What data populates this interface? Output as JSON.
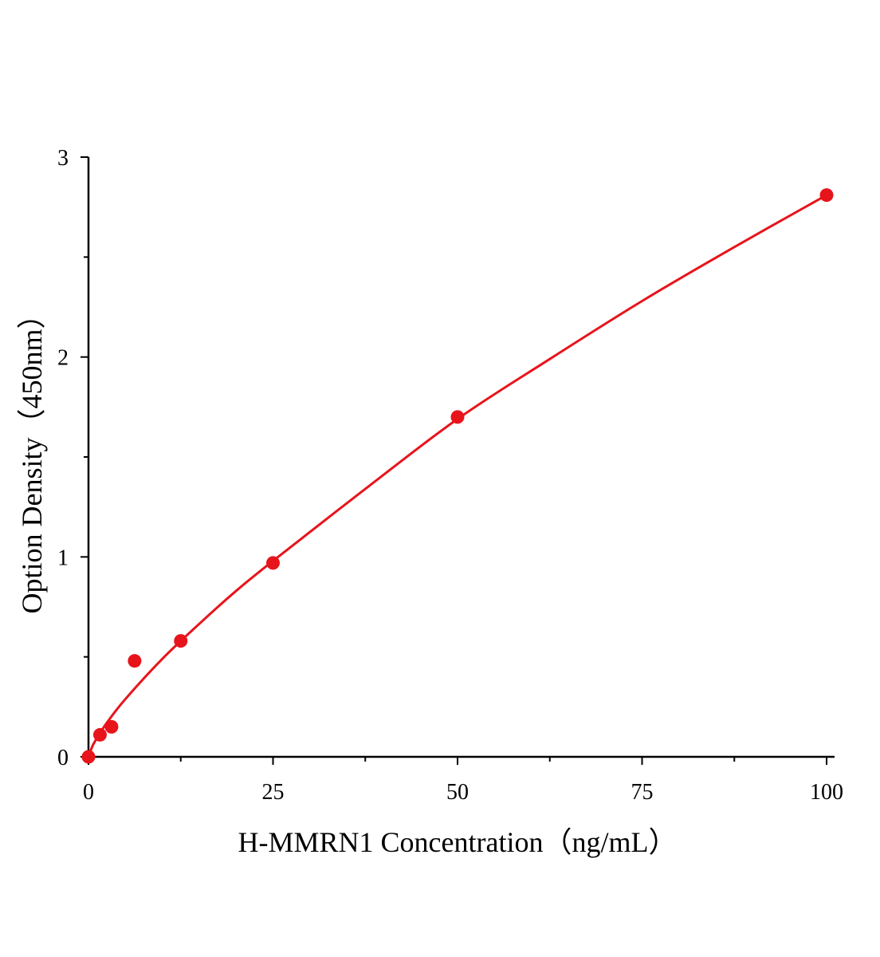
{
  "chart_data": {
    "type": "scatter",
    "title": "",
    "xlabel": "H-MMRN1 Concentration（ng/mL）",
    "ylabel": "Option Density（450nm）",
    "xlim": [
      0,
      100
    ],
    "ylim": [
      0,
      3
    ],
    "x_ticks": [
      0,
      25,
      50,
      75,
      100
    ],
    "x_tick_labels": [
      "0",
      "25",
      "50",
      "75",
      "100"
    ],
    "y_ticks": [
      0,
      1,
      2,
      3
    ],
    "y_tick_labels": [
      "0",
      "1",
      "2",
      "3"
    ],
    "grid": false,
    "color": "#e8141b",
    "points": {
      "x": [
        0,
        1.56,
        3.125,
        6.25,
        12.5,
        25,
        50,
        100
      ],
      "y": [
        0,
        0.11,
        0.15,
        0.48,
        0.58,
        0.97,
        1.7,
        2.81
      ]
    },
    "fit_curve": {
      "x": [
        0,
        0.5,
        1,
        2.5,
        5,
        10,
        15,
        20,
        25,
        37.5,
        50,
        62.5,
        75,
        87.5,
        100
      ],
      "y": [
        0,
        0.05,
        0.085,
        0.171,
        0.289,
        0.49,
        0.665,
        0.83,
        0.98,
        1.34,
        1.69,
        1.99,
        2.28,
        2.55,
        2.81
      ]
    }
  }
}
